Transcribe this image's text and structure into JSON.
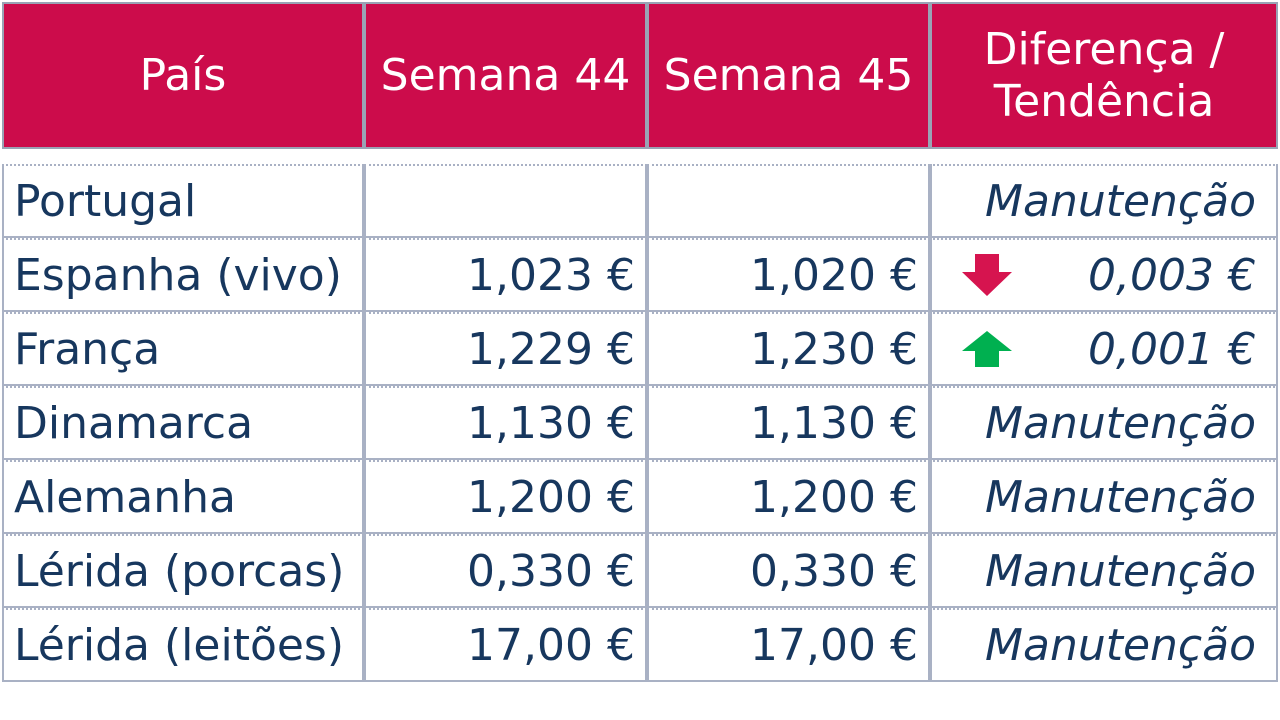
{
  "headers": {
    "country": "País",
    "week44": "Semana 44",
    "week45": "Semana 45",
    "diff_line1": "Diferença /",
    "diff_line2": "Tendência"
  },
  "rows": [
    {
      "country": "Portugal",
      "week44": "",
      "week45": "",
      "trend": "Manutenção",
      "trend_icon": "none"
    },
    {
      "country": "Espanha (vivo)",
      "week44": "1,023 €",
      "week45": "1,020 €",
      "trend": "0,003 €",
      "trend_icon": "arrow-down-icon"
    },
    {
      "country": "França",
      "week44": "1,229 €",
      "week45": "1,230 €",
      "trend": "0,001 €",
      "trend_icon": "arrow-up-icon"
    },
    {
      "country": "Dinamarca",
      "week44": "1,130 €",
      "week45": "1,130 €",
      "trend": "Manutenção",
      "trend_icon": "none"
    },
    {
      "country": "Alemanha",
      "week44": "1,200 €",
      "week45": "1,200 €",
      "trend": "Manutenção",
      "trend_icon": "none"
    },
    {
      "country": "Lérida (porcas)",
      "week44": "0,330 €",
      "week45": "0,330 €",
      "trend": "Manutenção",
      "trend_icon": "none"
    },
    {
      "country": "Lérida (leitões)",
      "week44": "17,00 €",
      "week45": "17,00 €",
      "trend": "Manutenção",
      "trend_icon": "none"
    }
  ],
  "colors": {
    "header_bg": "#cc0c4b",
    "header_text": "#ffffff",
    "body_text": "#17375e",
    "down_arrow": "#d6144f",
    "up_arrow": "#00b050"
  }
}
